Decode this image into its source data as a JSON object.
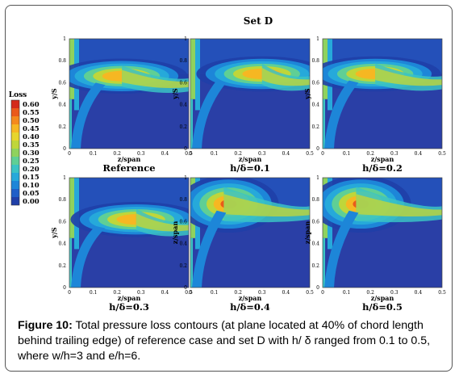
{
  "figure": {
    "set_title": "Set D",
    "caption_label": "Figure 10:",
    "caption_text": " Total pressure loss contours (at plane located at 40% of chord length behind trailing edge) of reference case and set D with h/ δ ranged from 0.1 to 0.5, where w/h=3 and e/h=6."
  },
  "colorbar": {
    "title": "Loss",
    "ticks": [
      "0.60",
      "0.55",
      "0.50",
      "0.45",
      "0.40",
      "0.35",
      "0.30",
      "0.25",
      "0.20",
      "0.15",
      "0.10",
      "0.05",
      "0.00"
    ],
    "colors": [
      "#1f3fa8",
      "#1f5fc8",
      "#1d86d8",
      "#26a9da",
      "#3bc3c4",
      "#5fcf95",
      "#8fd25e",
      "#bfd63a",
      "#e7d52c",
      "#f6b722",
      "#f48a1c",
      "#ea5a1a",
      "#d42a1a"
    ]
  },
  "chart_data": [
    {
      "type": "heatmap",
      "title": "Reference",
      "xlabel": "z/span",
      "ylabel": "y/S",
      "xlim": [
        0,
        0.5
      ],
      "ylim": [
        0,
        1
      ],
      "xticks": [
        "0",
        "0.1",
        "0.2",
        "0.3",
        "0.4",
        "0.5"
      ],
      "yticks": [
        "0",
        "0.2",
        "0.4",
        "0.6",
        "0.8",
        "1"
      ],
      "peak_loss": 0.5,
      "peak_z": 0.22,
      "peak_y": 0.66
    },
    {
      "type": "heatmap",
      "title": "h/δ=0.1",
      "xlabel": "z/span",
      "ylabel": "y/S",
      "xlim": [
        0,
        0.5
      ],
      "ylim": [
        0,
        1
      ],
      "xticks": [
        "0",
        "0.1",
        "0.2",
        "0.3",
        "0.4",
        "0.5"
      ],
      "yticks": [
        "0",
        "0.2",
        "0.4",
        "0.6",
        "0.8",
        "1"
      ],
      "peak_loss": 0.55,
      "peak_z": 0.3,
      "peak_y": 0.68
    },
    {
      "type": "heatmap",
      "title": "h/δ=0.2",
      "xlabel": "z/span",
      "ylabel": "y/S",
      "xlim": [
        0,
        0.5
      ],
      "ylim": [
        0,
        1
      ],
      "xticks": [
        "0",
        "0.1",
        "0.2",
        "0.3",
        "0.4",
        "0.5"
      ],
      "yticks": [
        "0",
        "0.2",
        "0.4",
        "0.6",
        "0.8",
        "1"
      ],
      "peak_loss": 0.55,
      "peak_z": 0.22,
      "peak_y": 0.68
    },
    {
      "type": "heatmap",
      "title": "h/δ=0.3",
      "xlabel": "z/span",
      "ylabel": "y/S",
      "xlim": [
        0,
        0.5
      ],
      "ylim": [
        0,
        1
      ],
      "xticks": [
        "0",
        "0.1",
        "0.2",
        "0.3",
        "0.4",
        "0.5"
      ],
      "yticks": [
        "0",
        "0.2",
        "0.4",
        "0.6",
        "0.8",
        "1"
      ],
      "peak_loss": 0.5,
      "peak_z": 0.28,
      "peak_y": 0.62
    },
    {
      "type": "heatmap",
      "title": "h/δ=0.4",
      "xlabel": "z/span",
      "ylabel": "z/span",
      "xlim": [
        0,
        0.5
      ],
      "ylim": [
        0,
        1
      ],
      "xticks": [
        "0",
        "0.1",
        "0.2",
        "0.3",
        "0.4",
        "0.5"
      ],
      "yticks": [
        "0",
        "0.2",
        "0.4",
        "0.6",
        "0.8",
        "1"
      ],
      "peak_loss": 0.6,
      "peak_z": 0.14,
      "peak_y": 0.76
    },
    {
      "type": "heatmap",
      "title": "h/δ=0.5",
      "xlabel": "z/span",
      "ylabel": "z/span",
      "xlim": [
        0,
        0.5
      ],
      "ylim": [
        0,
        1
      ],
      "xticks": [
        "0",
        "0.1",
        "0.2",
        "0.3",
        "0.4",
        "0.5"
      ],
      "yticks": [
        "0",
        "0.2",
        "0.4",
        "0.6",
        "0.8",
        "1"
      ],
      "peak_loss": 0.6,
      "peak_z": 0.14,
      "peak_y": 0.76
    }
  ]
}
